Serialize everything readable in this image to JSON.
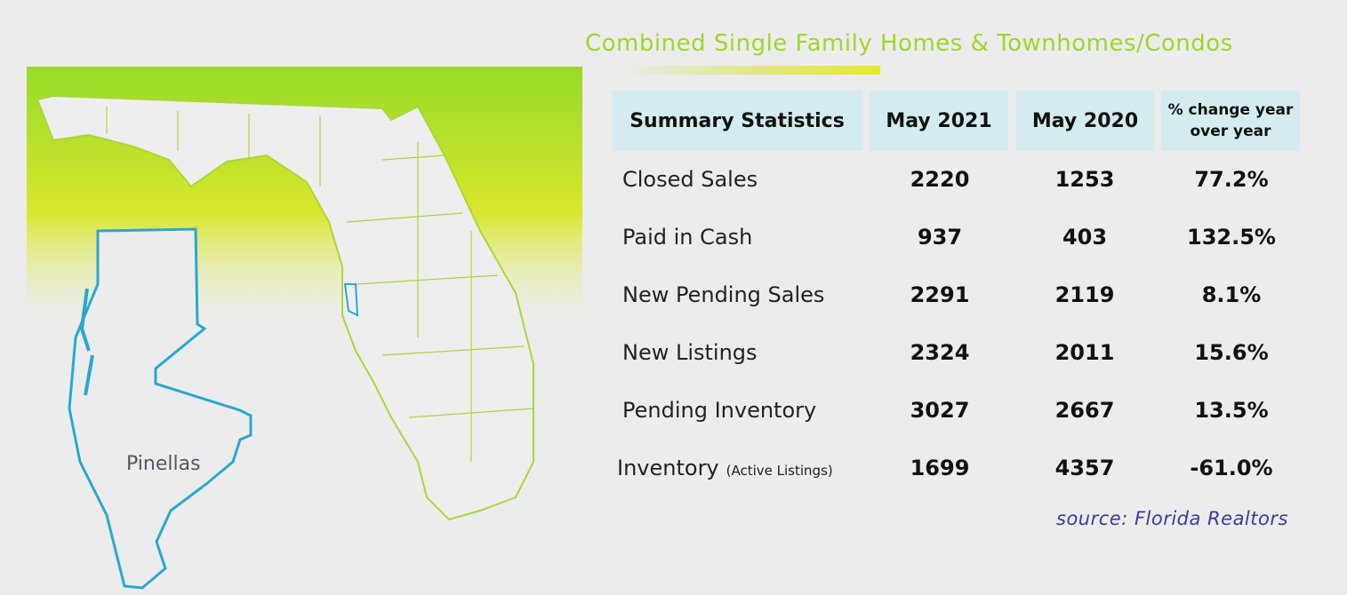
{
  "title": "Combined Single Family Homes & Townhomes/Condos",
  "map_label": "Pinellas",
  "table": {
    "header": [
      "Summary Statistics",
      "May 2021",
      "May 2020",
      "% change year over year"
    ],
    "rows": [
      {
        "label": "Closed Sales",
        "cells": [
          "2220",
          "1253",
          "77.2%"
        ]
      },
      {
        "label": "Paid in Cash",
        "cells": [
          "937",
          "403",
          "132.5%"
        ]
      },
      {
        "label": "New Pending Sales",
        "cells": [
          "2291",
          "2119",
          "8.1%"
        ]
      },
      {
        "label": "New Listings",
        "cells": [
          "2324",
          "2011",
          "15.6%"
        ]
      },
      {
        "label": "Pending Inventory",
        "cells": [
          "3027",
          "2667",
          "13.5%"
        ]
      },
      {
        "label": "Inventory",
        "note": "(Active Listings)",
        "cells": [
          "1699",
          "4357",
          "-61.0%"
        ]
      }
    ]
  },
  "source": "source: Florida Realtors"
}
